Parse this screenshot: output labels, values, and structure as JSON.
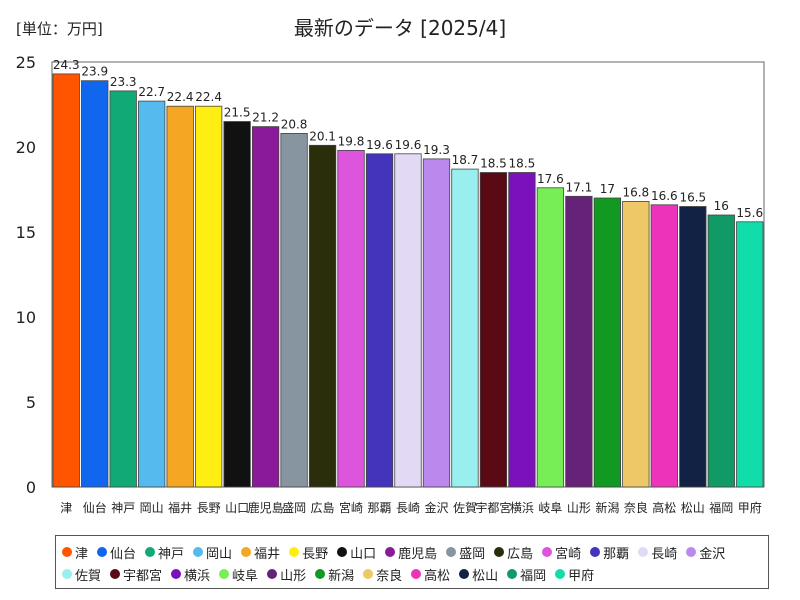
{
  "unit_label": "[単位：万円]",
  "chart_data": {
    "type": "bar",
    "title": "最新のデータ [2025/4]",
    "xlabel": "",
    "ylabel": "",
    "ylim": [
      0,
      25
    ],
    "yticks": [
      0,
      5,
      10,
      15,
      20,
      25
    ],
    "grid": false,
    "legend_position": "bottom",
    "categories": [
      "津",
      "仙台",
      "神戸",
      "岡山",
      "福井",
      "長野",
      "山口",
      "鹿児島",
      "盛岡",
      "広島",
      "宮崎",
      "那覇",
      "長崎",
      "金沢",
      "佐賀",
      "宇都宮",
      "横浜",
      "岐阜",
      "山形",
      "新潟",
      "奈良",
      "高松",
      "松山",
      "福岡",
      "甲府"
    ],
    "values": [
      24.3,
      23.9,
      23.3,
      22.7,
      22.4,
      22.4,
      21.5,
      21.2,
      20.8,
      20.1,
      19.8,
      19.6,
      19.6,
      19.3,
      18.7,
      18.5,
      18.5,
      17.6,
      17.1,
      17,
      16.8,
      16.6,
      16.5,
      16,
      15.6
    ],
    "value_labels": [
      "24.3",
      "23.9",
      "23.3",
      "22.7",
      "22.4",
      "22.4",
      "21.5",
      "21.2",
      "20.8",
      "20.1",
      "19.8",
      "19.6",
      "19.6",
      "19.3",
      "18.7",
      "18.5",
      "18.5",
      "17.6",
      "17.1",
      "17",
      "16.8",
      "16.6",
      "16.5",
      "16",
      "15.6"
    ],
    "colors": [
      "#ff5500",
      "#1166ee",
      "#11aa77",
      "#55bbee",
      "#f5a623",
      "#ffee11",
      "#111111",
      "#8a1a9a",
      "#8795a0",
      "#2a2e0a",
      "#dd55dd",
      "#4433bb",
      "#e2daf5",
      "#bb88ee",
      "#99eeee",
      "#5a0a14",
      "#7a11bb",
      "#77ee55",
      "#662277",
      "#119922",
      "#eec866",
      "#ee33bb",
      "#112244",
      "#119966",
      "#11ddaa"
    ]
  }
}
